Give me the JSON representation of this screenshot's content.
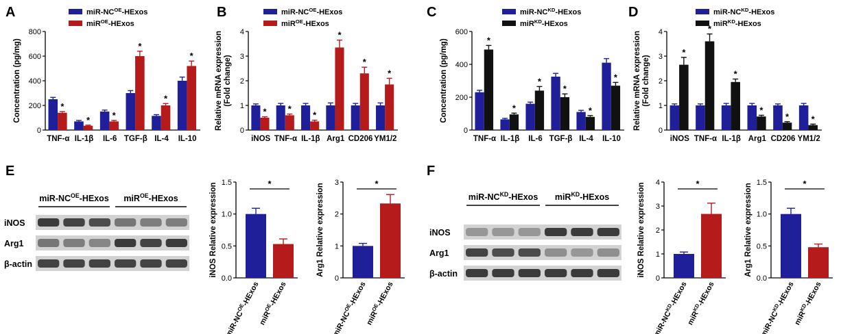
{
  "colors": {
    "blue": "#1f1f99",
    "red": "#b51b1b",
    "black": "#111111",
    "axis": "#000000",
    "blot_bg": "#d2d2d2",
    "band": "#2a2a2a"
  },
  "panels": {
    "A": "A",
    "B": "B",
    "C": "C",
    "D": "D",
    "E": "E",
    "F": "F"
  },
  "chart_data": [
    {
      "id": "A",
      "type": "bar",
      "title": "",
      "ylabel": "Concentration (pg/mg)",
      "ylim": [
        0,
        800
      ],
      "yticks": [
        "0",
        "200",
        "400",
        "600",
        "800"
      ],
      "categories": [
        "TNF-α",
        "IL-1β",
        "IL-6",
        "TGF-β",
        "IL-4",
        "IL-10"
      ],
      "series": [
        {
          "name": "miR-NC",
          "sup": "OE",
          "suffix": "-HExos",
          "color": "blue",
          "values": [
            250,
            70,
            150,
            300,
            115,
            400
          ],
          "errors": [
            15,
            8,
            12,
            20,
            10,
            30
          ]
        },
        {
          "name": "miR",
          "sup": "OE",
          "suffix": "-HExos",
          "color": "red",
          "values": [
            140,
            35,
            70,
            600,
            200,
            520
          ],
          "errors": [
            10,
            5,
            8,
            40,
            15,
            40
          ]
        }
      ],
      "stars": [
        false,
        true
      ]
    },
    {
      "id": "B",
      "type": "bar",
      "title": "",
      "ylabel": "Relative mRNA expression",
      "ylabel2": "(Fold change)",
      "ylim": [
        0,
        4
      ],
      "yticks": [
        "0",
        "1",
        "2",
        "3",
        "4"
      ],
      "categories": [
        "iNOS",
        "TNF-α",
        "IL-1β",
        "Arg1",
        "CD206",
        "YM1/2"
      ],
      "series": [
        {
          "name": "miR-NC",
          "sup": "OE",
          "suffix": "-HExos",
          "color": "blue",
          "values": [
            1.0,
            1.0,
            1.0,
            1.0,
            1.0,
            1.0
          ],
          "errors": [
            0.06,
            0.08,
            0.08,
            0.1,
            0.08,
            0.1
          ]
        },
        {
          "name": "miR",
          "sup": "OE",
          "suffix": "-HExos",
          "color": "red",
          "values": [
            0.5,
            0.6,
            0.35,
            3.35,
            2.3,
            1.85
          ],
          "errors": [
            0.04,
            0.05,
            0.05,
            0.3,
            0.25,
            0.25
          ]
        }
      ],
      "stars": [
        false,
        true
      ]
    },
    {
      "id": "C",
      "type": "bar",
      "title": "",
      "ylabel": "Concentration (pg/mg)",
      "ylim": [
        0,
        600
      ],
      "yticks": [
        "0",
        "200",
        "400",
        "600"
      ],
      "categories": [
        "TNF-α",
        "IL-1β",
        "IL-6",
        "TGF-β",
        "IL-4",
        "IL-10"
      ],
      "series": [
        {
          "name": "miR-NC",
          "sup": "KD",
          "suffix": "-HExos",
          "color": "blue",
          "values": [
            230,
            65,
            160,
            325,
            110,
            410
          ],
          "errors": [
            12,
            6,
            10,
            20,
            10,
            25
          ]
        },
        {
          "name": "miR",
          "sup": "KD",
          "suffix": "-HExos",
          "color": "black",
          "values": [
            490,
            95,
            240,
            200,
            80,
            270
          ],
          "errors": [
            25,
            8,
            25,
            20,
            8,
            20
          ]
        }
      ],
      "stars": [
        false,
        true
      ]
    },
    {
      "id": "D",
      "type": "bar",
      "title": "",
      "ylabel": "Relative mRNA expression",
      "ylabel2": "(Fold change)",
      "ylim": [
        0,
        4
      ],
      "yticks": [
        "0",
        "1",
        "2",
        "3",
        "4"
      ],
      "categories": [
        "iNOS",
        "TNF-α",
        "IL-1β",
        "Arg1",
        "CD206",
        "YM1/2"
      ],
      "series": [
        {
          "name": "miR-NC",
          "sup": "KD",
          "suffix": "-HExos",
          "color": "blue",
          "values": [
            1.0,
            1.0,
            1.0,
            1.0,
            1.0,
            1.0
          ],
          "errors": [
            0.06,
            0.06,
            0.08,
            0.08,
            0.06,
            0.08
          ]
        },
        {
          "name": "miR",
          "sup": "KD",
          "suffix": "-HExos",
          "color": "black",
          "values": [
            2.65,
            3.6,
            1.95,
            0.55,
            0.3,
            0.2
          ],
          "errors": [
            0.3,
            0.3,
            0.12,
            0.05,
            0.04,
            0.04
          ]
        }
      ],
      "stars": [
        false,
        true
      ]
    },
    {
      "id": "E1",
      "type": "bar",
      "ylabel": "iNOS Relative expression",
      "ylim": [
        0,
        1.5
      ],
      "yticks": [
        "0.0",
        "0.5",
        "1.0",
        "1.5"
      ],
      "categories": [
        {
          "name": "miR-NC",
          "sup": "OE",
          "suffix": "-HExos"
        },
        {
          "name": "miR",
          "sup": "OE",
          "suffix": "-HExos"
        }
      ],
      "values": [
        1.0,
        0.53
      ],
      "errors": [
        0.09,
        0.08
      ],
      "colors": [
        "blue",
        "red"
      ],
      "significance": "*"
    },
    {
      "id": "E2",
      "type": "bar",
      "ylabel": "Arg1 Relative expression",
      "ylim": [
        0,
        3
      ],
      "yticks": [
        "0",
        "1",
        "2",
        "3"
      ],
      "categories": [
        {
          "name": "miR-NC",
          "sup": "OE",
          "suffix": "-HExos"
        },
        {
          "name": "miR",
          "sup": "OE",
          "suffix": "-HExos"
        }
      ],
      "values": [
        1.0,
        2.33
      ],
      "errors": [
        0.08,
        0.28
      ],
      "colors": [
        "blue",
        "red"
      ],
      "significance": "*"
    },
    {
      "id": "F1",
      "type": "bar",
      "ylabel": "iNOS Relative expression",
      "ylim": [
        0,
        4
      ],
      "yticks": [
        "0",
        "1",
        "2",
        "3",
        "4"
      ],
      "categories": [
        {
          "name": "miR-NC",
          "sup": "KD",
          "suffix": "-HExos"
        },
        {
          "name": "miR",
          "sup": "KD",
          "suffix": "-HExos"
        }
      ],
      "values": [
        1.0,
        2.67
      ],
      "errors": [
        0.08,
        0.45
      ],
      "colors": [
        "blue",
        "red"
      ],
      "significance": "*"
    },
    {
      "id": "F2",
      "type": "bar",
      "ylabel": "Arg1 Relative expression",
      "ylim": [
        0,
        1.5
      ],
      "yticks": [
        "0.0",
        "0.5",
        "1.0",
        "1.5"
      ],
      "categories": [
        {
          "name": "miR-NC",
          "sup": "KD",
          "suffix": "-HExos"
        },
        {
          "name": "miR",
          "sup": "KD",
          "suffix": "-HExos"
        }
      ],
      "values": [
        1.0,
        0.48
      ],
      "errors": [
        0.09,
        0.05
      ],
      "colors": [
        "blue",
        "red"
      ],
      "significance": "*"
    }
  ],
  "blots": [
    {
      "id": "E",
      "groups": [
        {
          "name": "miR-NC",
          "sup": "OE",
          "suffix": "-HExos"
        },
        {
          "name": "miR",
          "sup": "OE",
          "suffix": "-HExos"
        }
      ],
      "rows": [
        {
          "label": "iNOS",
          "intensities": [
            0.9,
            0.85,
            0.8,
            0.55,
            0.5,
            0.5
          ]
        },
        {
          "label": "Arg1",
          "intensities": [
            0.55,
            0.5,
            0.45,
            0.9,
            0.85,
            0.9
          ]
        },
        {
          "label": "β-actin",
          "intensities": [
            0.85,
            0.85,
            0.85,
            0.85,
            0.85,
            0.85
          ]
        }
      ]
    },
    {
      "id": "F",
      "groups": [
        {
          "name": "miR-NC",
          "sup": "KD",
          "suffix": "-HExos"
        },
        {
          "name": "miR",
          "sup": "KD",
          "suffix": "-HExos"
        }
      ],
      "rows": [
        {
          "label": "iNOS",
          "intensities": [
            0.35,
            0.35,
            0.35,
            0.9,
            0.9,
            0.9
          ]
        },
        {
          "label": "Arg1",
          "intensities": [
            0.85,
            0.8,
            0.8,
            0.4,
            0.35,
            0.4
          ]
        },
        {
          "label": "β-actin",
          "intensities": [
            0.9,
            0.9,
            0.9,
            0.9,
            0.9,
            0.9
          ]
        }
      ]
    }
  ]
}
